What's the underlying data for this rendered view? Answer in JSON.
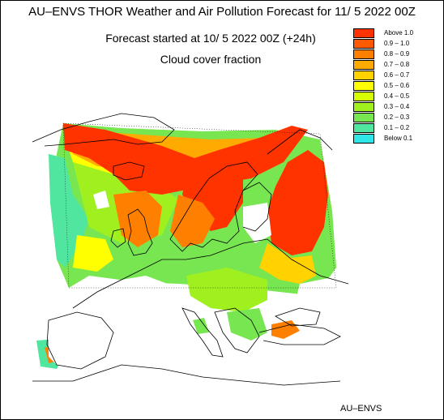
{
  "header": {
    "title": "AU–ENVS THOR Weather and Air Pollution Forecast for 11/ 5 2022  00Z",
    "subtitle": "Forecast started at 10/ 5 2022  00Z (+24h)",
    "variable": "Cloud cover fraction"
  },
  "legend": {
    "items": [
      {
        "label": "Above   1.0",
        "color": "#ff3300"
      },
      {
        "label": "0.9 – 1.0",
        "color": "#ff5a00"
      },
      {
        "label": "0.8 – 0.9",
        "color": "#ff8000"
      },
      {
        "label": "0.7 – 0.8",
        "color": "#ffaa00"
      },
      {
        "label": "0.6 – 0.7",
        "color": "#ffd200"
      },
      {
        "label": "0.5 – 0.6",
        "color": "#ffff00"
      },
      {
        "label": "0.4 – 0.5",
        "color": "#d7ff00"
      },
      {
        "label": "0.3 – 0.4",
        "color": "#a0f020"
      },
      {
        "label": "0.2 – 0.3",
        "color": "#78e650"
      },
      {
        "label": "0.1 – 0.2",
        "color": "#50e6a0"
      },
      {
        "label": "Below   0.1",
        "color": "#30e6e6"
      }
    ]
  },
  "credit": "AU–ENVS"
}
